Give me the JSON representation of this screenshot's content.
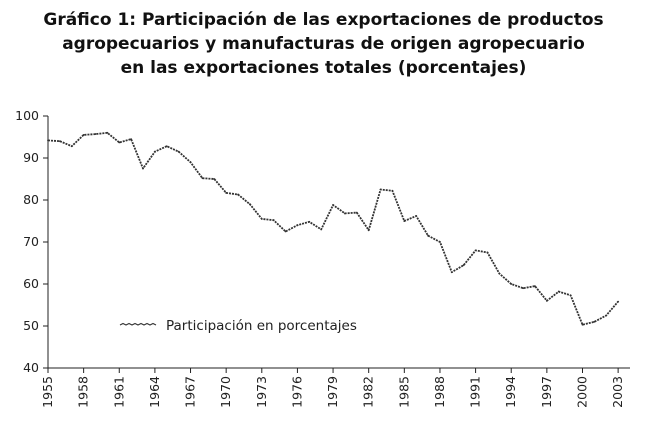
{
  "chart_data": {
    "type": "line",
    "title_lines": [
      "Gráfico 1: Participación de las exportaciones de productos",
      "agropecuarios y manufacturas de origen agropecuario",
      "en las exportaciones totales (porcentajes)"
    ],
    "xlabel": "",
    "ylabel": "",
    "xlim": [
      1955,
      2004
    ],
    "ylim": [
      40,
      100
    ],
    "y_ticks": [
      40,
      50,
      60,
      70,
      80,
      90,
      100
    ],
    "x_ticks": [
      1955,
      1958,
      1961,
      1964,
      1967,
      1970,
      1973,
      1976,
      1979,
      1982,
      1985,
      1988,
      1991,
      1994,
      1997,
      2000,
      2003
    ],
    "grid": false,
    "legend_position": "bottom-left",
    "series": [
      {
        "name": "Participación en porcentajes",
        "color": "#333333",
        "x": [
          1955,
          1956,
          1957,
          1958,
          1959,
          1960,
          1961,
          1962,
          1963,
          1964,
          1965,
          1966,
          1967,
          1968,
          1969,
          1970,
          1971,
          1972,
          1973,
          1974,
          1975,
          1976,
          1977,
          1978,
          1979,
          1980,
          1981,
          1982,
          1983,
          1984,
          1985,
          1986,
          1987,
          1988,
          1989,
          1990,
          1991,
          1992,
          1993,
          1994,
          1995,
          1996,
          1997,
          1998,
          1999,
          2000,
          2001,
          2002,
          2003
        ],
        "values": [
          94.2,
          94.0,
          92.8,
          95.5,
          95.7,
          96.0,
          93.7,
          94.5,
          87.5,
          91.5,
          92.8,
          91.5,
          89.0,
          85.2,
          85.0,
          81.7,
          81.3,
          79.0,
          75.5,
          75.2,
          72.5,
          74.0,
          74.8,
          73.0,
          78.8,
          76.8,
          77.0,
          72.8,
          82.5,
          82.2,
          75.0,
          76.2,
          71.5,
          70.0,
          62.8,
          64.5,
          68.0,
          67.5,
          62.5,
          60.0,
          59.0,
          59.5,
          56.0,
          58.2,
          57.3,
          50.3,
          51.0,
          52.5,
          55.8
        ]
      }
    ]
  }
}
